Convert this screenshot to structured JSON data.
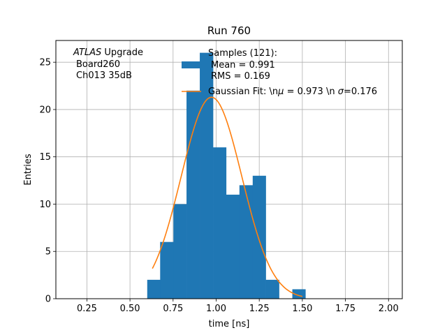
{
  "chart_data": {
    "type": "bar",
    "title": "Run 760",
    "xlabel": "time [ns]",
    "ylabel": "Entries",
    "xlim": [
      0.07,
      2.08
    ],
    "ylim": [
      0,
      27.3
    ],
    "xticks": [
      "0.25",
      "0.50",
      "0.75",
      "1.00",
      "1.25",
      "1.50",
      "1.75",
      "2.00"
    ],
    "xtick_values": [
      0.25,
      0.5,
      0.75,
      1.0,
      1.25,
      1.5,
      1.75,
      2.0
    ],
    "yticks": [
      "0",
      "5",
      "10",
      "15",
      "20",
      "25"
    ],
    "ytick_values": [
      0,
      5,
      10,
      15,
      20,
      25
    ],
    "grid": true,
    "annotation_lines": [
      "ATLAS",
      "Upgrade",
      "Board260",
      "Ch013 35dB"
    ],
    "histogram": {
      "name": "Samples (121):",
      "color": "#1f77b4",
      "bin_edges": [
        0.6,
        0.675,
        0.752,
        0.828,
        0.905,
        0.982,
        1.058,
        1.135,
        1.212,
        1.288,
        1.365,
        1.442,
        1.518
      ],
      "counts": [
        2,
        6,
        10,
        22,
        26,
        16,
        11,
        12,
        13,
        2,
        0,
        1
      ],
      "stats": [
        "Mean = 0.991",
        "RMS = 0.169"
      ]
    },
    "fit": {
      "name": "Gaussian Fit: \\n",
      "mu_label": "μ",
      "mu_text": " = 0.973 \\n ",
      "sigma_label": "σ",
      "sigma_text": "=0.176",
      "mu": 0.973,
      "sigma": 0.176,
      "amplitude": 21.3,
      "x_range": [
        0.63,
        1.5
      ],
      "color": "#ff7f0e"
    },
    "legend_position": "upper-right"
  }
}
